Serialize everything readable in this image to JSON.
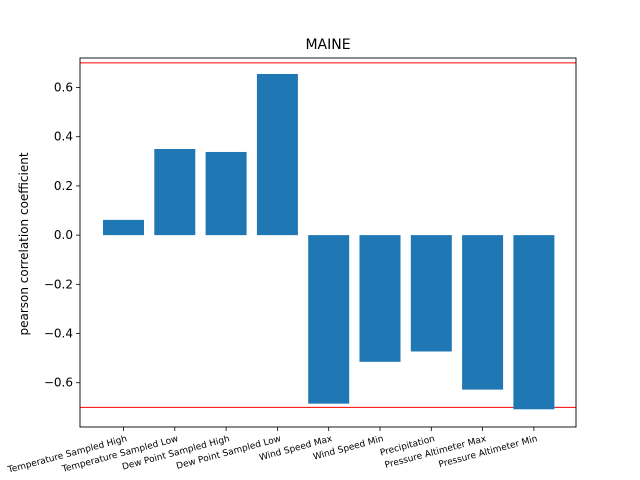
{
  "chart_data": {
    "type": "bar",
    "title": "MAINE",
    "xlabel": "",
    "ylabel": "pearson correlation coefficient",
    "categories": [
      "Temperature Sampled High",
      "Temperature Sampled Low",
      "Dew Point Sampled High",
      "Dew Point Sampled Low",
      "Wind Speed Max",
      "Wind Speed Min",
      "Precipitation",
      "Pressure Altimeter Max",
      "Pressure Altimeter Min"
    ],
    "values": [
      0.062,
      0.35,
      0.338,
      0.655,
      -0.685,
      -0.515,
      -0.473,
      -0.628,
      -0.708
    ],
    "ylim": [
      -0.78,
      0.72
    ],
    "yticks": [
      0.6,
      0.4,
      0.2,
      0.0,
      -0.2,
      -0.4,
      -0.6
    ],
    "ytick_labels": [
      "0.6",
      "0.4",
      "0.2",
      "0.0",
      "−0.2",
      "−0.4",
      "−0.6"
    ],
    "reference_lines": [
      0.7,
      -0.7
    ],
    "grid": false,
    "colors": {
      "bar": "#1f77b4",
      "reference_line": "#ff0000",
      "axis": "#000000"
    }
  }
}
